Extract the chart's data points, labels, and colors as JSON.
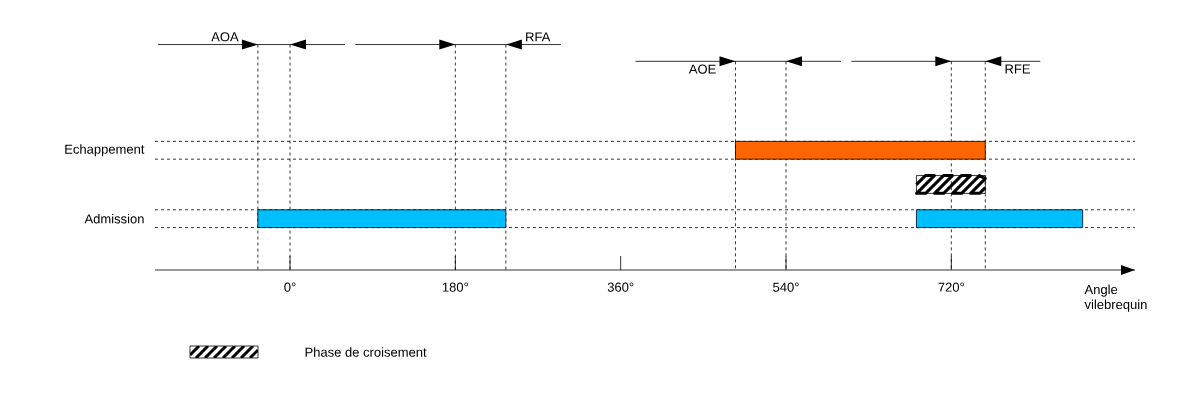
{
  "chart_data": {
    "type": "bar",
    "orientation": "horizontal",
    "categories": [
      "Echappement",
      null,
      "Admission"
    ],
    "series": [
      {
        "colors": [
          "#ff6600",
          null,
          "#00bfff"
        ],
        "base": [
          485,
          null,
          -35
        ],
        "values": [
          272,
          null,
          270
        ]
      },
      {
        "color": "#00bfff",
        "base": [
          null,
          null,
          682
        ],
        "values": [
          null,
          null,
          181
        ]
      },
      {
        "name": "Phase de croisement",
        "color": "#000000",
        "base": [
          null,
          682,
          null
        ],
        "values": [
          null,
          75,
          null
        ]
      }
    ],
    "xlabel": "Angle vilebrequin",
    "xlim": [
      -147,
      920
    ],
    "xticks": [
      {
        "value": 0,
        "label": "0°"
      },
      {
        "value": 180,
        "label": "180°"
      },
      {
        "value": 360,
        "label": "360°"
      },
      {
        "value": 540,
        "label": "540°"
      },
      {
        "value": 720,
        "label": "720°"
      }
    ],
    "grid": "y",
    "legend": "bottom left",
    "line_style": "dashed",
    "ref_lines": [
      {
        "axis": "x",
        "value": -35
      },
      {
        "axis": "x",
        "value": 0
      },
      {
        "axis": "x",
        "value": 180
      },
      {
        "axis": "x",
        "value": 235
      },
      {
        "axis": "x",
        "value": 485
      },
      {
        "axis": "x",
        "value": 540
      },
      {
        "axis": "x",
        "value": 720
      },
      {
        "axis": "x",
        "value": 757
      }
    ],
    "annotations": [
      "AOA",
      "RFA",
      "AOE",
      "RFE"
    ]
  }
}
